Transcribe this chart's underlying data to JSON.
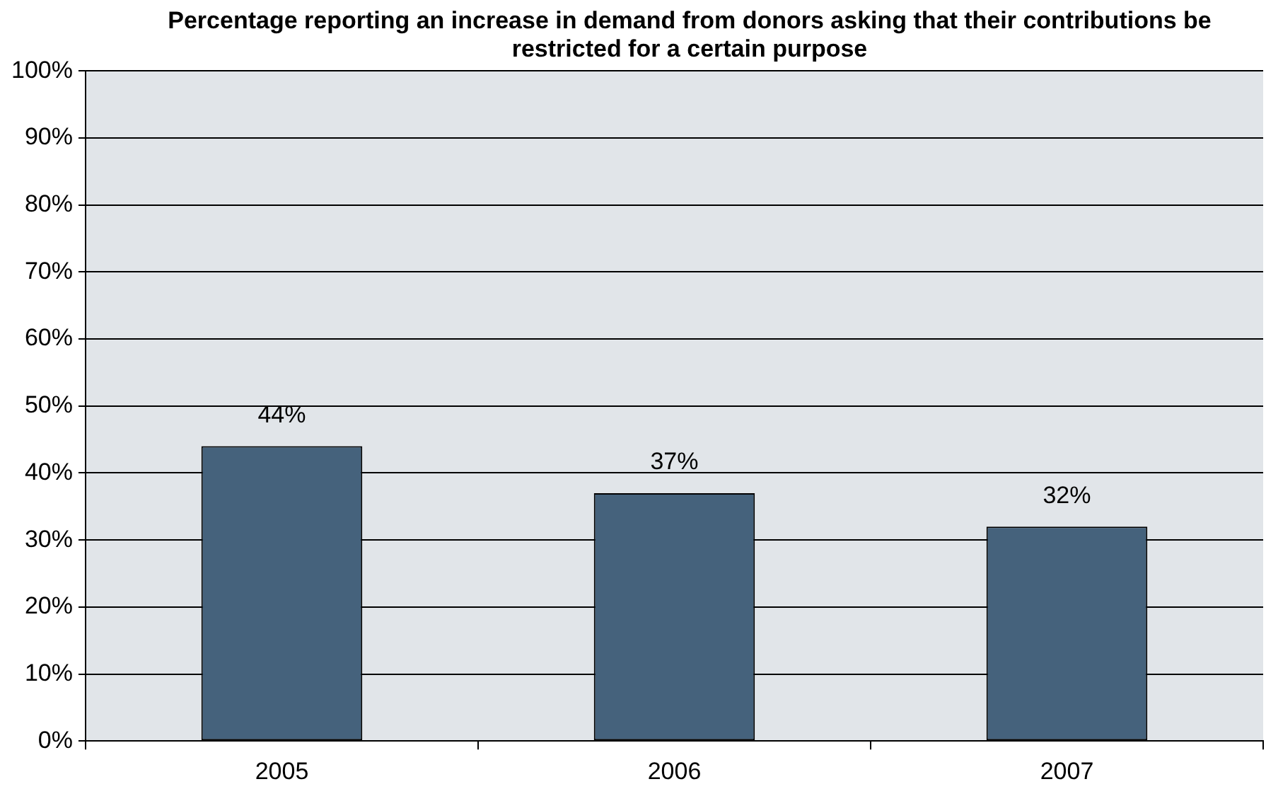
{
  "chart_data": {
    "type": "bar",
    "title": "Percentage reporting an increase in demand from donors asking that their contributions be restricted for a certain purpose",
    "categories": [
      "2005",
      "2006",
      "2007"
    ],
    "values": [
      44,
      37,
      32
    ],
    "color": "#45627c",
    "value_labels": [
      "44%",
      "37%",
      "32%"
    ],
    "ylim": [
      0,
      100
    ],
    "yticks": [
      {
        "value": 0,
        "label": "0%"
      },
      {
        "value": 10,
        "label": "10%"
      },
      {
        "value": 20,
        "label": "20%"
      },
      {
        "value": 30,
        "label": "30%"
      },
      {
        "value": 40,
        "label": "40%"
      },
      {
        "value": 50,
        "label": "50%"
      },
      {
        "value": 60,
        "label": "60%"
      },
      {
        "value": 70,
        "label": "70%"
      },
      {
        "value": 80,
        "label": "80%"
      },
      {
        "value": 90,
        "label": "90%"
      },
      {
        "value": 100,
        "label": "100%"
      }
    ],
    "grid": "y",
    "legend": false
  }
}
